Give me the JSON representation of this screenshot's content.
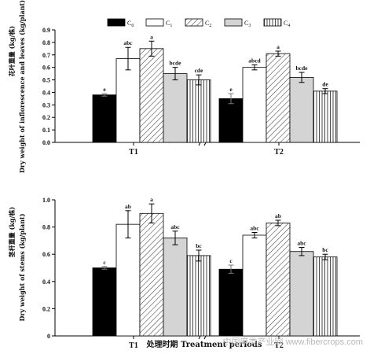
{
  "chart_data": [
    {
      "type": "bar",
      "ylabel": "花叶重量 (kg/株)",
      "ylabel_en": "Dry weight of inflorescence and leaves (kg/plant)",
      "ylim": [
        0,
        0.9
      ],
      "yticks": [
        "0.0",
        "0.1",
        "0.2",
        "0.3",
        "0.4",
        "0.5",
        "0.6",
        "0.7",
        "0.8",
        "0.9"
      ],
      "categories": [
        "T1",
        "T2"
      ],
      "series": [
        {
          "name": "C0",
          "values": [
            0.38,
            0.35
          ],
          "errors": [
            0.01,
            0.04
          ],
          "letters": [
            "e",
            "e"
          ]
        },
        {
          "name": "C1",
          "values": [
            0.67,
            0.6
          ],
          "errors": [
            0.09,
            0.02
          ],
          "letters": [
            "abc",
            "abcd"
          ]
        },
        {
          "name": "C2",
          "values": [
            0.75,
            0.71
          ],
          "errors": [
            0.06,
            0.02
          ],
          "letters": [
            "a",
            "a"
          ]
        },
        {
          "name": "C3",
          "values": [
            0.55,
            0.52
          ],
          "errors": [
            0.05,
            0.04
          ],
          "letters": [
            "bcde",
            "bcde"
          ]
        },
        {
          "name": "C4",
          "values": [
            0.5,
            0.41
          ],
          "errors": [
            0.04,
            0.02
          ],
          "letters": [
            "cde",
            "de"
          ]
        }
      ]
    },
    {
      "type": "bar",
      "ylabel": "茎杆重量 (kg/株)",
      "ylabel_en": "Dry weight of stems (kg/plant)",
      "ylim": [
        0,
        1.0
      ],
      "yticks": [
        "0",
        "0.2",
        "0.4",
        "0.6",
        "0.8",
        "1.0"
      ],
      "categories": [
        "T1",
        "T2"
      ],
      "xlabel": "处理时期  Treatment periods",
      "series": [
        {
          "name": "C0",
          "values": [
            0.5,
            0.49
          ],
          "errors": [
            0.01,
            0.03
          ],
          "letters": [
            "c",
            "c"
          ]
        },
        {
          "name": "C1",
          "values": [
            0.82,
            0.74
          ],
          "errors": [
            0.1,
            0.02
          ],
          "letters": [
            "ab",
            "abc"
          ]
        },
        {
          "name": "C2",
          "values": [
            0.9,
            0.83
          ],
          "errors": [
            0.07,
            0.02
          ],
          "letters": [
            "a",
            "ab"
          ]
        },
        {
          "name": "C3",
          "values": [
            0.72,
            0.62
          ],
          "errors": [
            0.05,
            0.03
          ],
          "letters": [
            "abc",
            "abc"
          ]
        },
        {
          "name": "C4",
          "values": [
            0.59,
            0.58
          ],
          "errors": [
            0.04,
            0.02
          ],
          "letters": [
            "bc",
            "bc"
          ]
        }
      ]
    }
  ],
  "legend": [
    {
      "base": "C",
      "sub": "0",
      "fill": "#000000",
      "pattern": "solid"
    },
    {
      "base": "C",
      "sub": "1",
      "fill": "#ffffff",
      "pattern": "none"
    },
    {
      "base": "C",
      "sub": "2",
      "fill": "#ffffff",
      "pattern": "diagonal"
    },
    {
      "base": "C",
      "sub": "3",
      "fill": "#d4d4d4",
      "pattern": "solid"
    },
    {
      "base": "C",
      "sub": "4",
      "fill": "#ffffff",
      "pattern": "vertical"
    }
  ],
  "watermark": "中国麻类产业网 www.fibercrops.com"
}
